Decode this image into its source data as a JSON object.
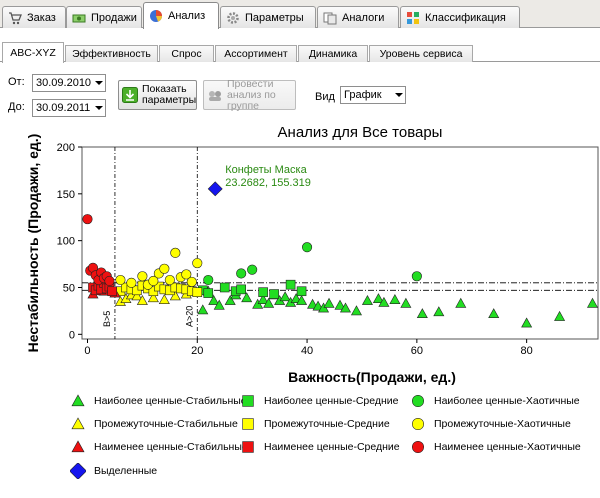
{
  "top_tabs": [
    {
      "label": "Заказ",
      "icon": "cart-icon",
      "active": false
    },
    {
      "label": "Продажи",
      "icon": "money-icon",
      "active": false
    },
    {
      "label": "Анализ",
      "icon": "pie-chart-icon",
      "active": true
    },
    {
      "label": "Параметры",
      "icon": "gear-icon",
      "active": false
    },
    {
      "label": "Аналоги",
      "icon": "analogs-icon",
      "active": false
    },
    {
      "label": "Классификация",
      "icon": "classification-icon",
      "active": false
    }
  ],
  "sub_tabs": [
    {
      "label": "ABC-XYZ",
      "active": true
    },
    {
      "label": "Эффективность",
      "active": false
    },
    {
      "label": "Спрос",
      "active": false
    },
    {
      "label": "Ассортимент",
      "active": false
    },
    {
      "label": "Динамика",
      "active": false
    },
    {
      "label": "Уровень сервиса",
      "active": false
    }
  ],
  "filters": {
    "from_label": "От:",
    "from_value": "30.09.2010",
    "to_label": "До:",
    "to_value": "30.09.2011",
    "show_button": "Показать параметры",
    "group_button": "Провести анализ по группе",
    "view_label": "Вид",
    "view_value": "График"
  },
  "chart_data": {
    "type": "scatter",
    "title": "Анализ для Все товары",
    "xlabel": "Важность(Продажи, ед.)",
    "ylabel": "Нестабильность (Продажи, ед.)",
    "xlim": [
      -1,
      93
    ],
    "ylim": [
      -5,
      200
    ],
    "xticks": [
      0,
      20,
      40,
      60,
      80
    ],
    "yticks": [
      0,
      50,
      100,
      150,
      200
    ],
    "vlines": [
      {
        "x": 5,
        "label": "B>5"
      },
      {
        "x": 20,
        "label": "A>20"
      }
    ],
    "hlines": [
      47,
      55
    ],
    "highlight": {
      "name": "Конфеты Маска",
      "x": 23.2682,
      "y": 155.319,
      "label": "23.2682, 155.319"
    },
    "colors": {
      "green": "#22dd22",
      "yellow": "#ffff00",
      "red": "#ee1111",
      "blue": "#1515ee"
    },
    "series": [
      {
        "name": "Наиболее ценные-Стабильные",
        "shape": "triangle",
        "color": "#22dd22",
        "x": [
          21,
          22,
          23,
          24,
          26,
          27,
          29,
          31,
          32,
          33,
          34,
          35,
          36,
          37,
          38,
          39,
          41,
          42,
          43,
          44,
          46,
          47,
          49,
          51,
          53,
          54,
          56,
          58,
          61,
          64,
          68,
          74,
          80,
          86,
          92
        ],
        "y": [
          26,
          46,
          36,
          31,
          36,
          42,
          39,
          32,
          37,
          33,
          42,
          36,
          40,
          34,
          38,
          36,
          32,
          30,
          28,
          33,
          31,
          28,
          25,
          36,
          38,
          34,
          37,
          33,
          22,
          24,
          33,
          22,
          12,
          19,
          33
        ]
      },
      {
        "name": "Наиболее ценные-Средние",
        "shape": "square",
        "color": "#22dd22",
        "x": [
          21,
          22,
          25,
          27,
          28,
          32,
          34,
          37,
          39
        ],
        "y": [
          47,
          44,
          50,
          46,
          48,
          45,
          43,
          53,
          46
        ]
      },
      {
        "name": "Наиболее ценные-Хаотичные",
        "shape": "circle",
        "color": "#22dd22",
        "x": [
          22,
          28,
          30,
          40,
          60
        ],
        "y": [
          58,
          65,
          69,
          93,
          62
        ]
      },
      {
        "name": "Промежуточные-Стабильные",
        "shape": "triangle",
        "color": "#ffff00",
        "x": [
          6,
          7,
          8,
          9,
          10,
          12,
          14,
          16,
          18
        ],
        "y": [
          35,
          38,
          42,
          41,
          36,
          39,
          37,
          41,
          43
        ]
      },
      {
        "name": "Промежуточные-Средние",
        "shape": "square",
        "color": "#ffff00",
        "x": [
          6,
          7,
          8,
          9,
          10,
          11,
          12,
          13,
          14,
          15,
          16,
          17,
          18,
          19,
          20
        ],
        "y": [
          46,
          50,
          48,
          47,
          52,
          49,
          46,
          51,
          48,
          47,
          50,
          49,
          48,
          46,
          45
        ]
      },
      {
        "name": "Промежуточные-Хаотичные",
        "shape": "circle",
        "color": "#ffff00",
        "x": [
          6,
          8,
          10,
          11,
          12,
          13,
          14,
          15,
          16,
          17,
          18,
          19,
          20
        ],
        "y": [
          58,
          55,
          62,
          53,
          57,
          65,
          70,
          58,
          87,
          61,
          64,
          56,
          76
        ]
      },
      {
        "name": "Наименее ценные-Стабильные",
        "shape": "triangle",
        "color": "#ee1111",
        "x": [
          1,
          2,
          3,
          4,
          5
        ],
        "y": [
          43,
          48,
          46,
          49,
          44
        ]
      },
      {
        "name": "Наименее ценные-Средние",
        "shape": "square",
        "color": "#ee1111",
        "x": [
          1,
          1.5,
          2,
          2.5,
          3,
          3.5,
          4,
          4.5
        ],
        "y": [
          50,
          47,
          52,
          48,
          55,
          49,
          51,
          46
        ]
      },
      {
        "name": "Наименее ценные-Хаотичные",
        "shape": "circle",
        "color": "#ee1111",
        "x": [
          0,
          0.5,
          1,
          1.5,
          2,
          2.5,
          3,
          3.5,
          4
        ],
        "y": [
          123,
          68,
          71,
          63,
          58,
          66,
          60,
          62,
          57
        ]
      },
      {
        "name": "Выделенные",
        "shape": "diamond",
        "color": "#1515ee",
        "x": [
          23.2682
        ],
        "y": [
          155.319
        ]
      }
    ],
    "legend_layout": "bottom, 3 columns"
  }
}
